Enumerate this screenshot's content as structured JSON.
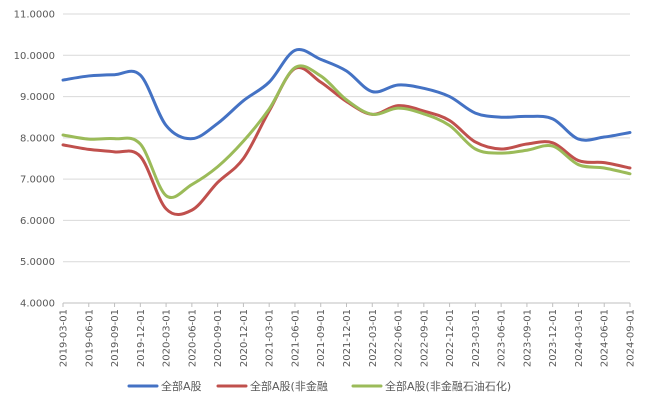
{
  "chart_data": {
    "type": "line",
    "title": "",
    "xlabel": "",
    "ylabel": "",
    "ylim": [
      4.0,
      11.0
    ],
    "yticks": [
      "4.0000",
      "5.0000",
      "6.0000",
      "7.0000",
      "8.0000",
      "9.0000",
      "10.0000",
      "11.0000"
    ],
    "grid": true,
    "legend_position": "bottom",
    "categories": [
      "2019-03-01",
      "2019-06-01",
      "2019-09-01",
      "2019-12-01",
      "2020-03-01",
      "2020-06-01",
      "2020-09-01",
      "2020-12-01",
      "2021-03-01",
      "2021-06-01",
      "2021-09-01",
      "2021-12-01",
      "2022-03-01",
      "2022-06-01",
      "2022-09-01",
      "2022-12-01",
      "2023-03-01",
      "2023-06-01",
      "2023-09-01",
      "2023-12-01",
      "2024-03-01",
      "2024-06-01",
      "2024-09-01"
    ],
    "series": [
      {
        "name": "全部A股",
        "color": "#4472c4",
        "values": [
          9.4,
          9.5,
          9.53,
          9.52,
          8.3,
          7.98,
          8.35,
          8.9,
          9.35,
          10.12,
          9.9,
          9.62,
          9.12,
          9.28,
          9.2,
          9.0,
          8.6,
          8.5,
          8.52,
          8.46,
          7.97,
          8.02,
          8.13
        ]
      },
      {
        "name": "全部A股(非金融",
        "color": "#c0504d",
        "values": [
          7.83,
          7.72,
          7.66,
          7.55,
          6.28,
          6.25,
          6.92,
          7.5,
          8.65,
          9.68,
          9.35,
          8.88,
          8.57,
          8.78,
          8.65,
          8.42,
          7.9,
          7.73,
          7.85,
          7.88,
          7.45,
          7.4,
          7.27
        ]
      },
      {
        "name": "全部A股(非金融石油石化)",
        "color": "#9bbb59",
        "values": [
          8.07,
          7.97,
          7.98,
          7.85,
          6.6,
          6.87,
          7.3,
          7.92,
          8.7,
          9.7,
          9.5,
          8.92,
          8.57,
          8.72,
          8.58,
          8.3,
          7.73,
          7.63,
          7.7,
          7.8,
          7.35,
          7.27,
          7.13
        ]
      }
    ]
  }
}
